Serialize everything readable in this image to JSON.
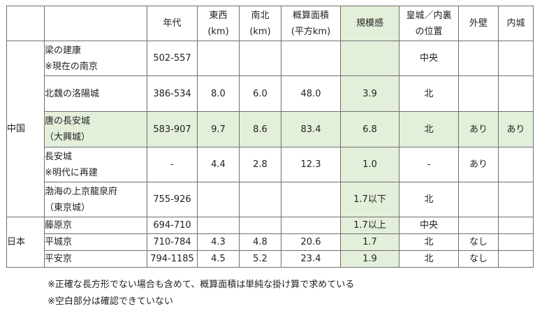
{
  "headers": {
    "era": "年代",
    "ew": [
      "東西",
      "(km)"
    ],
    "ns": [
      "南北",
      "(km)"
    ],
    "area": [
      "概算面積",
      "(平方km)"
    ],
    "scale": "規模感",
    "palace": [
      "皇城／内裏",
      "の位置"
    ],
    "outer_wall": "外壁",
    "inner_wall": "内城"
  },
  "regions": {
    "china": "中国",
    "japan": "日本"
  },
  "rows": [
    {
      "name": [
        "梁の建康",
        "※現在の南京"
      ],
      "era": "502-557",
      "ew": "",
      "ns": "",
      "area": "",
      "scale": "",
      "palace": "中央",
      "outer": "",
      "inner": ""
    },
    {
      "name": [
        "北魏の洛陽城"
      ],
      "era": "386-534",
      "ew": "8.0",
      "ns": "6.0",
      "area": "48.0",
      "scale": "3.9",
      "palace": "北",
      "outer": "",
      "inner": ""
    },
    {
      "name": [
        "唐の長安城",
        "（大興城）"
      ],
      "era": "583-907",
      "ew": "9.7",
      "ns": "8.6",
      "area": "83.4",
      "scale": "6.8",
      "palace": "北",
      "outer": "あり",
      "inner": "あり"
    },
    {
      "name": [
        "長安城",
        "※明代に再建"
      ],
      "era": "-",
      "ew": "4.4",
      "ns": "2.8",
      "area": "12.3",
      "scale": "1.0",
      "palace": "-",
      "outer": "あり",
      "inner": ""
    },
    {
      "name": [
        "渤海の上京龍泉府",
        "（東京城）"
      ],
      "era": "755-926",
      "ew": "",
      "ns": "",
      "area": "",
      "scale": "1.7以下",
      "palace": "北",
      "outer": "",
      "inner": ""
    },
    {
      "name": [
        "藤原京"
      ],
      "era": "694-710",
      "ew": "",
      "ns": "",
      "area": "",
      "scale": "1.7以上",
      "palace": "中央",
      "outer": "",
      "inner": ""
    },
    {
      "name": [
        "平城京"
      ],
      "era": "710-784",
      "ew": "4.3",
      "ns": "4.8",
      "area": "20.6",
      "scale": "1.7",
      "palace": "北",
      "outer": "なし",
      "inner": ""
    },
    {
      "name": [
        "平安京"
      ],
      "era": "794-1185",
      "ew": "4.5",
      "ns": "5.2",
      "area": "23.4",
      "scale": "1.9",
      "palace": "北",
      "outer": "なし",
      "inner": ""
    }
  ],
  "notes": [
    "※正確な長方形でない場合も含めて、概算面積は単純な掛け算で求めている",
    "※空白部分は確認できていない"
  ],
  "colors": {
    "highlight": "#e3efd9",
    "border": "#6f6f6f"
  }
}
